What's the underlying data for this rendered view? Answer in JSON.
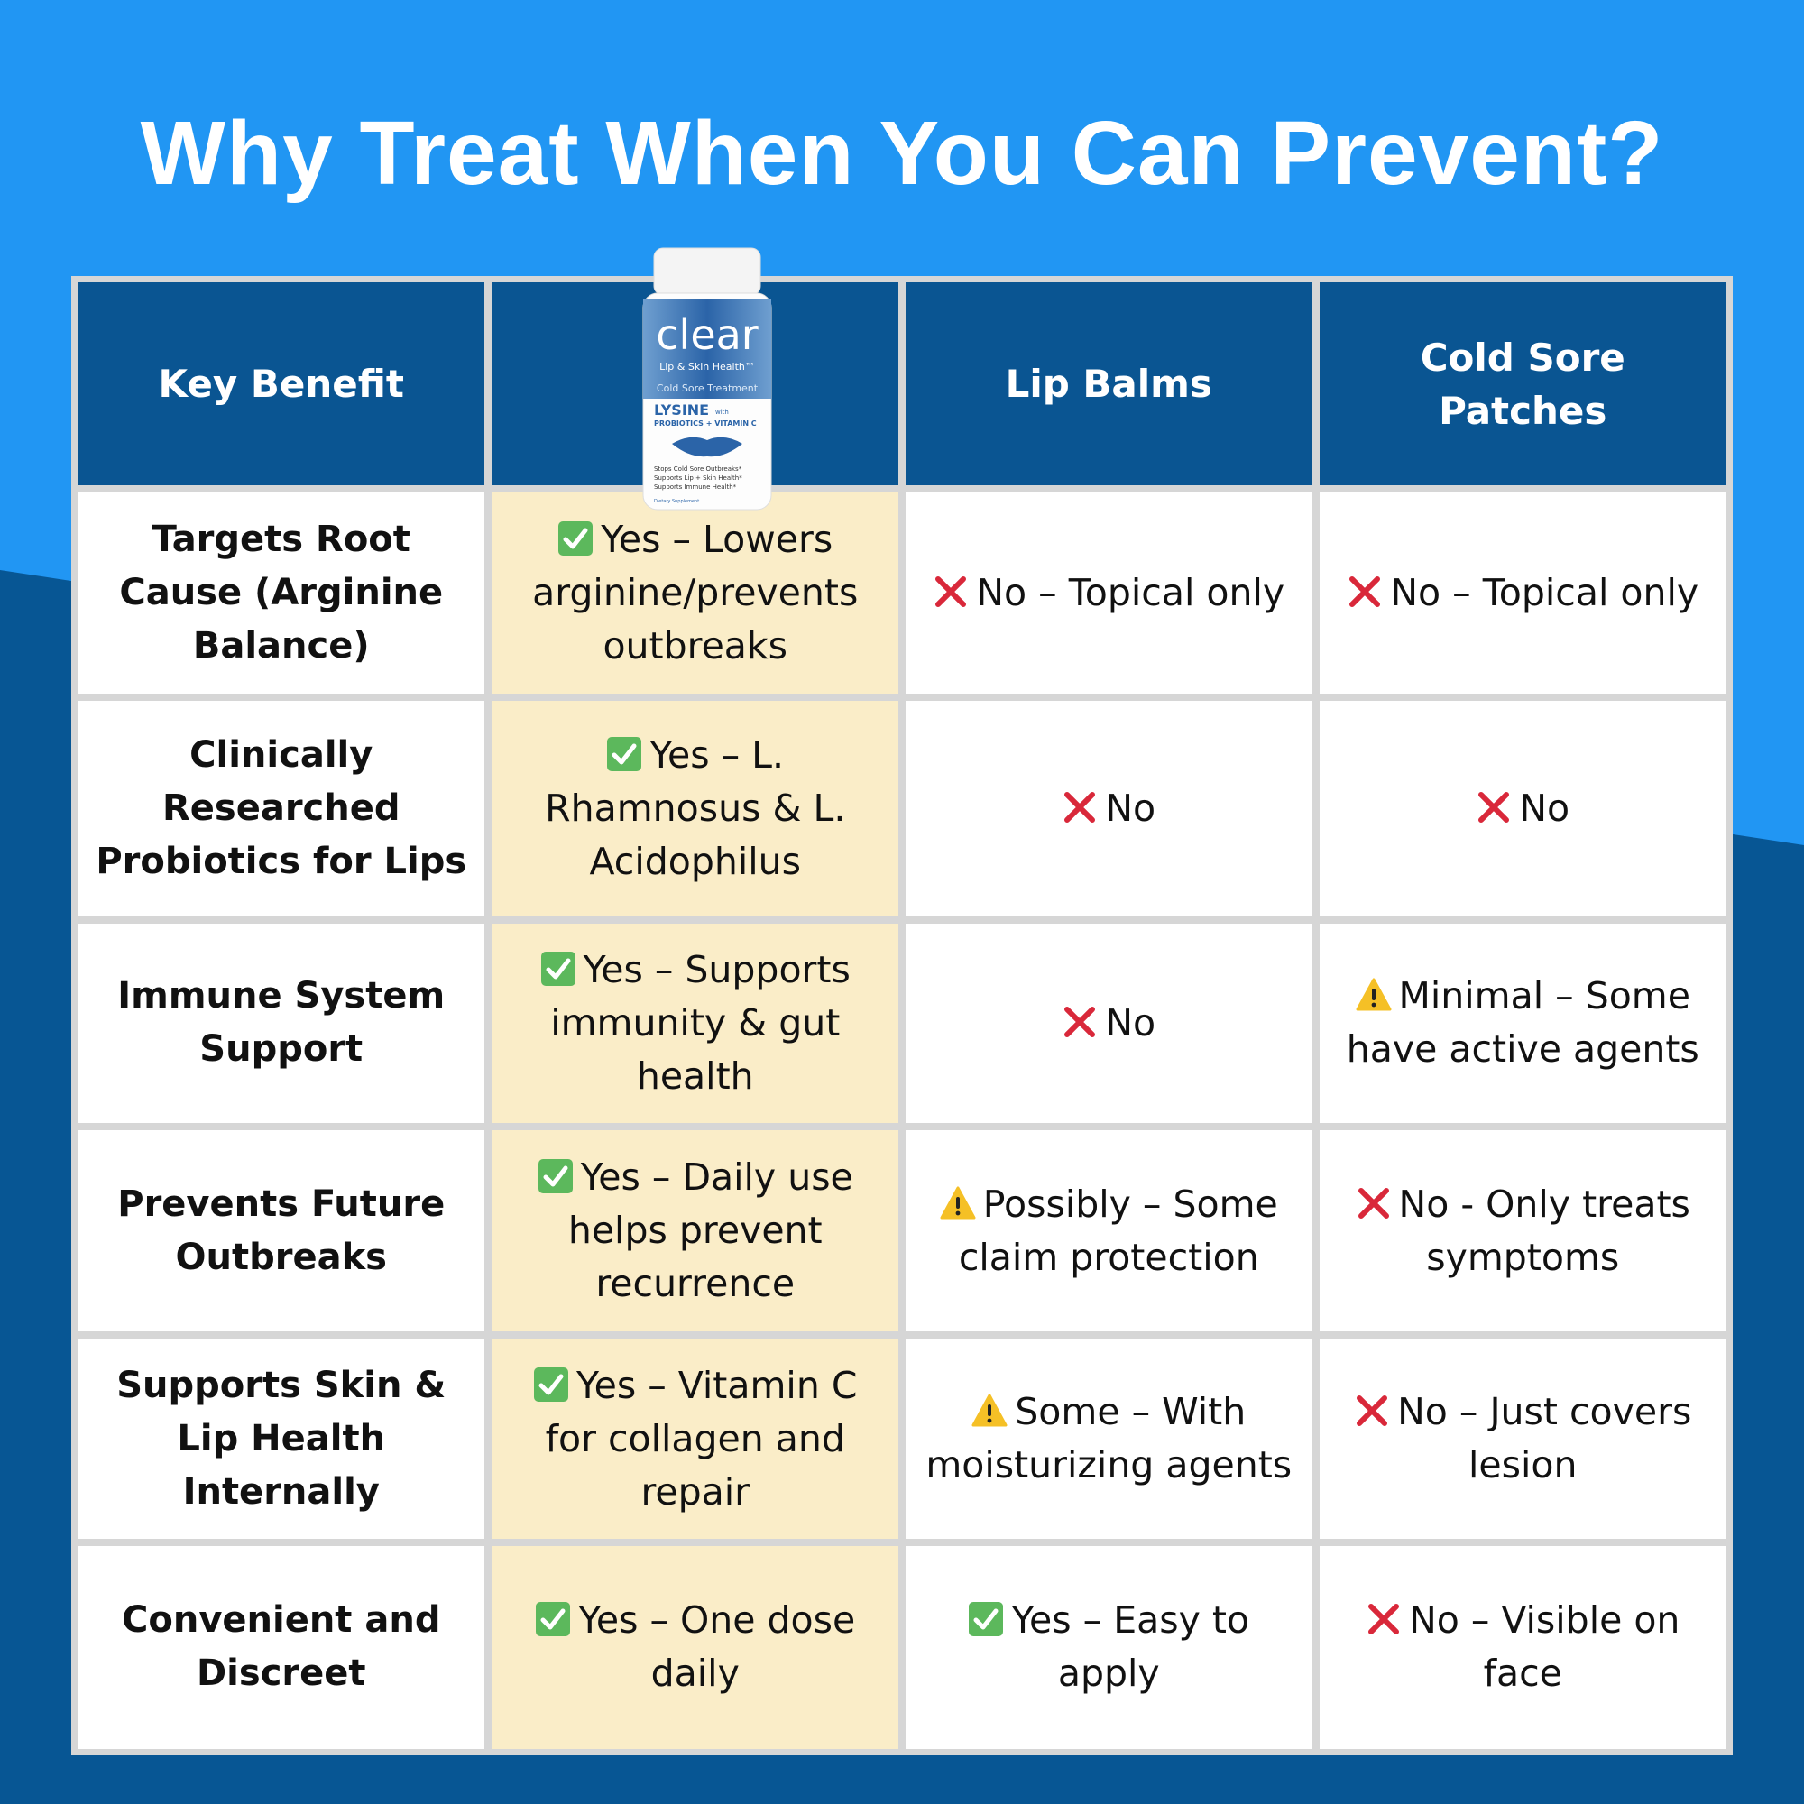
{
  "title": "Why Treat When You Can Prevent?",
  "header": {
    "key_benefit": "Key Benefit",
    "lip_balms": "Lip Balms",
    "patches": "Cold Sore Patches"
  },
  "product": {
    "brand": "clear",
    "tagline": "Lip & Skin Health™",
    "subtitle": "Cold Sore Treatment",
    "ingredient": "LYSINE",
    "with": "with",
    "extras": "PROBIOTICS + VITAMIN C",
    "claims": [
      "Stops Cold Sore Outbreaks*",
      "Supports Lip + Skin Health*",
      "Supports Immune Health*"
    ],
    "footer": "Dietary Supplement"
  },
  "rows": [
    {
      "benefit": "Targets Root Cause (Arginine Balance)",
      "clear": "Yes – Lowers arginine/prevents outbreaks",
      "lip_balms": "No – Topical only",
      "patches": "No – Topical only"
    },
    {
      "benefit": "Clinically Researched Probiotics for Lips",
      "clear": "Yes – L. Rhamnosus & L. Acidophilus",
      "lip_balms": "No",
      "patches": "No"
    },
    {
      "benefit": "Immune System Support",
      "clear": "Yes – Supports immunity & gut health",
      "lip_balms": "No",
      "patches": "Minimal – Some have active agents"
    },
    {
      "benefit": "Prevents Future Outbreaks",
      "clear": "Yes – Daily use helps prevent recurrence",
      "lip_balms": "Possibly – Some claim protection",
      "patches": "No - Only treats symptoms"
    },
    {
      "benefit": "Supports Skin & Lip Health Internally",
      "clear": "Yes – Vitamin C for collagen and repair",
      "lip_balms": "Some – With moisturizing agents",
      "patches": "No – Just covers lesion"
    },
    {
      "benefit": "Convenient and Discreet",
      "clear": "Yes – One dose daily",
      "lip_balms": "Yes – Easy to apply",
      "patches": "No – Visible on face"
    }
  ]
}
